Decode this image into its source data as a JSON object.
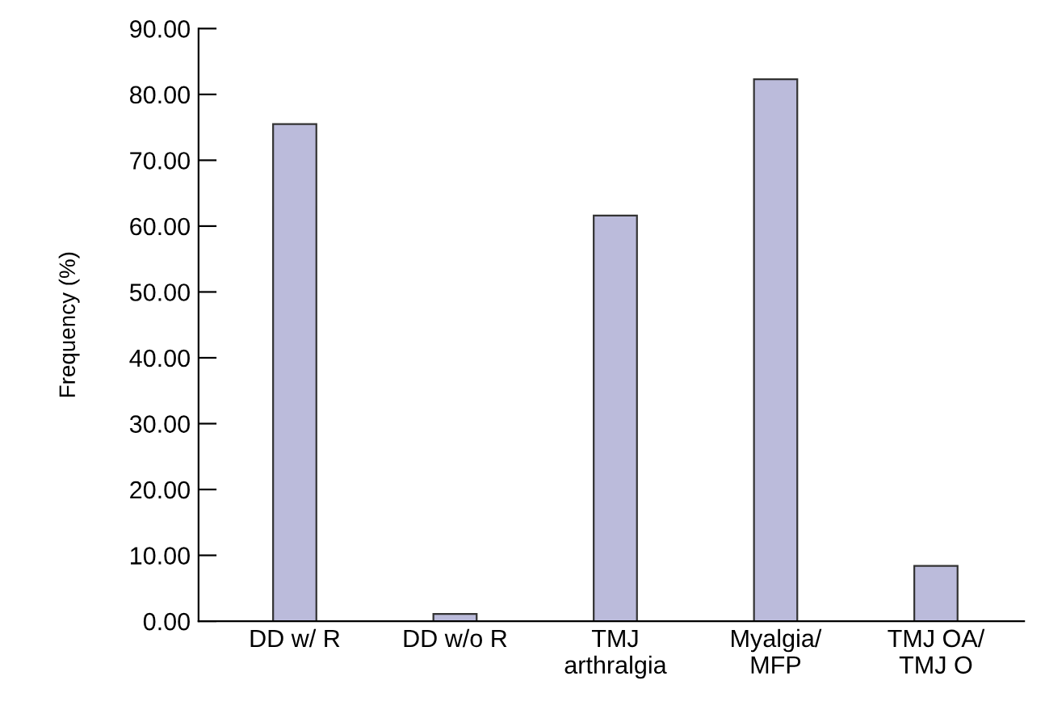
{
  "chart_data": {
    "type": "bar",
    "ylabel": "Frequency (%)",
    "categories": [
      "DD w/ R",
      "DD w/o R",
      "TMJ\narthralgia",
      "Myalgia/\nMFP",
      "TMJ OA/\nTMJ O"
    ],
    "values": [
      75.5,
      1.1,
      61.6,
      82.3,
      8.4
    ],
    "color": "#bbbbdb",
    "ylim": [
      0,
      90
    ],
    "yticks": [
      {
        "value": 0,
        "label": "0.00"
      },
      {
        "value": 10,
        "label": "10.00"
      },
      {
        "value": 20,
        "label": "20.00"
      },
      {
        "value": 30,
        "label": "30.00"
      },
      {
        "value": 40,
        "label": "40.00"
      },
      {
        "value": 50,
        "label": "50.00"
      },
      {
        "value": 60,
        "label": "60.00"
      },
      {
        "value": 70,
        "label": "70.00"
      },
      {
        "value": 80,
        "label": "80.00"
      },
      {
        "value": 90,
        "label": "90.00"
      }
    ],
    "grid": false
  }
}
